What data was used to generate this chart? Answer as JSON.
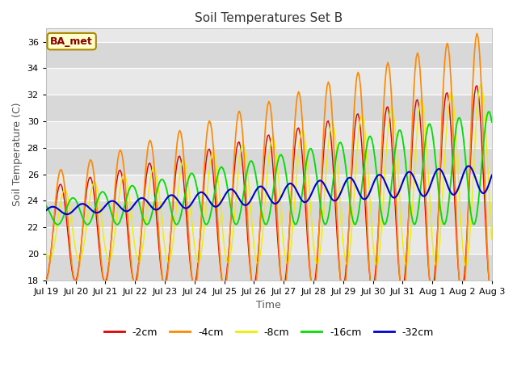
{
  "title": "Soil Temperatures Set B",
  "xlabel": "Time",
  "ylabel": "Soil Temperature (C)",
  "ylim": [
    18,
    37
  ],
  "background_color": "#ffffff",
  "plot_bg_color": "#e8e8e8",
  "strip_colors": [
    "#d8d8d8",
    "#e8e8e8"
  ],
  "colors": {
    "-2cm": "#dd0000",
    "-4cm": "#ff8800",
    "-8cm": "#eeee00",
    "-16cm": "#00dd00",
    "-32cm": "#0000cc"
  },
  "annotation_text": "BA_met",
  "annotation_bg": "#ffffcc",
  "annotation_border": "#aa8800",
  "annotation_text_color": "#880000",
  "xtick_labels": [
    "Jul 19",
    "Jul 20",
    "Jul 21",
    "Jul 22",
    "Jul 23",
    "Jul 24",
    "Jul 25",
    "Jul 26",
    "Jul 27",
    "Jul 28",
    "Jul 29",
    "Jul 30",
    "Jul 31",
    "Aug 1",
    "Aug 2",
    "Aug 3"
  ],
  "ytick_values": [
    18,
    20,
    22,
    24,
    26,
    28,
    30,
    32,
    34,
    36
  ]
}
